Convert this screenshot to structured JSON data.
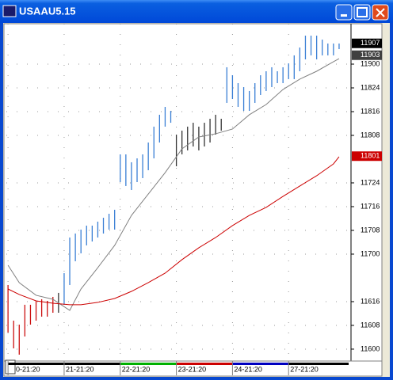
{
  "chart_data": {
    "type": "ohlc",
    "title": "USAAU5.15",
    "ylim": [
      115.883,
      119.425
    ],
    "yticks": [
      {
        "value": 116,
        "label": "11600"
      },
      {
        "value": 116.25,
        "label": "11608"
      },
      {
        "value": 116.5,
        "label": "11616"
      },
      {
        "value": 117,
        "label": "11700"
      },
      {
        "value": 117.25,
        "label": "11708"
      },
      {
        "value": 117.5,
        "label": "11716"
      },
      {
        "value": 117.75,
        "label": "11724"
      },
      {
        "value": 118.25,
        "label": "11808"
      },
      {
        "value": 118.5,
        "label": "11816"
      },
      {
        "value": 118.75,
        "label": "11824"
      },
      {
        "value": 119,
        "label": "11900"
      }
    ],
    "xlim": [
      -0.3,
      60.7
    ],
    "xticks": [
      {
        "value": 0,
        "label": "0-21:20"
      },
      {
        "value": 10,
        "label": "21-21:20"
      },
      {
        "value": 20,
        "label": "22-21:20"
      },
      {
        "value": 30,
        "label": "23-21:20"
      },
      {
        "value": 40,
        "label": "24-21:20"
      },
      {
        "value": 50,
        "label": "27-21:20"
      }
    ],
    "session_colors": [
      "#000000",
      "#000000",
      "#00b000",
      "#cc0000",
      "#0000c0",
      "#000000"
    ],
    "grid": true,
    "series": [
      {
        "color": "#cc1010",
        "x": [
          0,
          1,
          2,
          3,
          4,
          5,
          6,
          7,
          8
        ],
        "high": [
          116.675,
          116.3,
          116.258,
          116.467,
          116.467,
          116.508,
          116.525,
          116.508,
          116.55
        ],
        "low": [
          116.175,
          116.008,
          115.942,
          116.133,
          116.258,
          116.3,
          116.342,
          116.342,
          116.383
        ]
      },
      {
        "color": "#333333",
        "x": [
          9
        ],
        "high": [
          116.592
        ],
        "low": [
          116.383
        ]
      },
      {
        "color": "#3a7fd5",
        "x": [
          10,
          11,
          12,
          13,
          14,
          15,
          16,
          17,
          18,
          19,
          20,
          21,
          22,
          23,
          24,
          25,
          26,
          27,
          28,
          29
        ],
        "high": [
          116.8,
          117.175,
          117.217,
          117.258,
          117.3,
          117.3,
          117.342,
          117.383,
          117.425,
          117.467,
          118.05,
          118.05,
          117.967,
          118.008,
          118.05,
          118.175,
          118.342,
          118.467,
          118.55,
          118.508
        ],
        "low": [
          116.467,
          116.675,
          116.925,
          117.008,
          117.092,
          117.133,
          117.175,
          117.217,
          117.258,
          117.258,
          117.758,
          117.717,
          117.675,
          117.758,
          117.8,
          117.883,
          118.008,
          118.175,
          118.342,
          118.383
        ]
      },
      {
        "color": "#333333",
        "x": [
          30,
          31,
          32,
          33,
          34,
          35,
          36,
          37,
          38
        ],
        "high": [
          118.258,
          118.3,
          118.342,
          118.383,
          118.342,
          118.383,
          118.425,
          118.467,
          118.425
        ],
        "low": [
          117.925,
          118.05,
          118.092,
          118.133,
          118.092,
          118.133,
          118.175,
          118.258,
          118.3
        ]
      },
      {
        "color": "#3a7fd5",
        "x": [
          39,
          40,
          41,
          42,
          43,
          44,
          45,
          46,
          47,
          48,
          49,
          50,
          51,
          52,
          53,
          54,
          55,
          56,
          57,
          58,
          59
        ],
        "high": [
          118.967,
          118.883,
          118.8,
          118.758,
          118.717,
          118.8,
          118.883,
          118.925,
          118.967,
          118.925,
          118.967,
          119.008,
          119.092,
          119.175,
          119.3,
          119.3,
          119.3,
          119.258,
          119.217,
          119.217,
          119.217
        ],
        "low": [
          118.592,
          118.633,
          118.55,
          118.508,
          118.508,
          118.592,
          118.675,
          118.717,
          118.758,
          118.8,
          118.8,
          118.842,
          118.842,
          118.925,
          119.05,
          119.092,
          119.05,
          119.092,
          119.092,
          119.092,
          119.158
        ]
      }
    ],
    "lines": [
      {
        "color": "#808080",
        "x": [
          0,
          2,
          5,
          8,
          11,
          13,
          16,
          19,
          22,
          25,
          28,
          31,
          34,
          37,
          40,
          43,
          46,
          49,
          52,
          55,
          58,
          59
        ],
        "values": [
          116.883,
          116.7,
          116.567,
          116.525,
          116.408,
          116.633,
          116.858,
          117.092,
          117.408,
          117.633,
          117.858,
          118.108,
          118.233,
          118.267,
          118.317,
          118.467,
          118.575,
          118.733,
          118.842,
          118.925,
          119.025,
          119.058
        ]
      },
      {
        "color": "#cc0000",
        "x": [
          0,
          2,
          5,
          8,
          11,
          13,
          16,
          19,
          22,
          25,
          28,
          31,
          34,
          37,
          40,
          43,
          46,
          49,
          52,
          55,
          58,
          59
        ],
        "values": [
          116.633,
          116.575,
          116.508,
          116.483,
          116.467,
          116.467,
          116.492,
          116.533,
          116.608,
          116.7,
          116.8,
          116.942,
          117.067,
          117.175,
          117.3,
          117.408,
          117.492,
          117.608,
          117.717,
          117.825,
          117.95,
          118.025
        ]
      }
    ],
    "price_labels": {
      "values": [
        119.21875,
        119.09375,
        118.03125
      ],
      "value_labels": [
        "11907",
        "11903",
        "11801"
      ],
      "colors": [
        "#000000",
        "#404040",
        "#cc0000"
      ]
    }
  }
}
